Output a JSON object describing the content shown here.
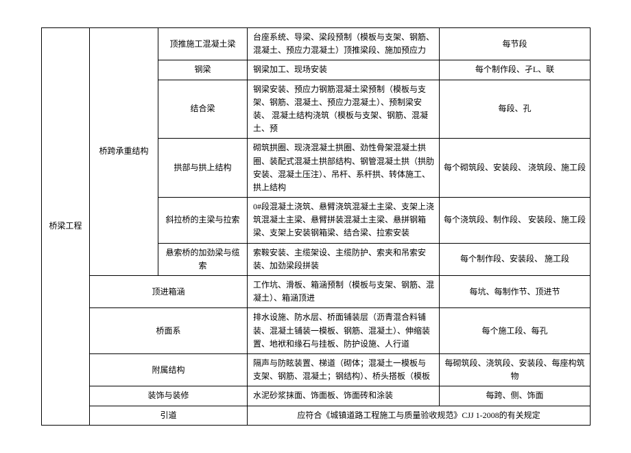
{
  "table": {
    "col0": "桥梁工程",
    "rows": [
      {
        "c1": "桥跨承重结构",
        "c2": "顶推施工混凝土梁",
        "c3": "台座系统、导梁、梁段预制（模板与支架、钢筋、混凝土、预应力混凝土）顶推梁段、施加预应力",
        "c4": "每节段"
      },
      {
        "c2": "钢梁",
        "c3": "钢梁加工、现场安装",
        "c4": "每个制作段、孑L、联"
      },
      {
        "c2": "结合梁",
        "c3": "钢梁安装、预应力钢筋混凝土梁预制（模板与支架、钢筋、混凝土、预应力混凝土）、预制梁安装、\n混凝土结构浇筑（模板与支架、钢筋、混凝土、预",
        "c4": "每段、孔"
      },
      {
        "c2": "拱部与拱上结构",
        "c3": "砌筑拱圈、现浇混凝土拱圈、劲性骨架混凝土拱圈、装配式混凝土拱部结构、钢管混凝土拱（拱肋安装、混凝土压注）、吊杆、系杆拱、转体施工、拱上结构",
        "c4": "每个砌筑段、安装段、 浇筑段、施工段"
      },
      {
        "c2": "斜拉桥的主梁与拉索",
        "c3": "0#段混凝土浇筑、悬臂浇筑混凝土主梁、支架上浇筑混凝土主梁、悬臂拼装混凝土主梁、悬拼钢箱梁、支架上安装钢箱梁、结合梁、拉索安装",
        "c4": "每个浇筑段、制作段、 安装段、施工段"
      },
      {
        "c2": "悬索桥的加劲梁与缆索",
        "c3": "索鞍安装、主缆架设、主缆防护、索夹和吊索安装、加劲梁段拼装",
        "c4": "每个制作段、安装段、 施工段"
      },
      {
        "c1": "顶进箱涵",
        "c3": "工作坑、滑板、箱涵预制（模板与支架、钢筋、混凝土）、箱涵顶进",
        "c4": "每坑、每制作节、顶进节"
      },
      {
        "c1": "桥面系",
        "c3": "排水设施、防水层、桥面铺装层（沥青混合料铺装、混凝土铺装一模板、钢筋、混凝土）、伸缩装置、地袱和缘石与挂板、防护设施、人行道",
        "c4": "每个施工段、每孔"
      },
      {
        "c1": "附属结构",
        "c3": "隔声与防眩装置、梯道（砌体；混凝土一模板与\n支架、钢筋、混凝土；钢结构）、桥头搭板（模板",
        "c4": "每砌筑段、浇筑段、安装段、每座构筑物"
      },
      {
        "c1": "装饰与装修",
        "c3": "水泥砂浆抹面、饰面板、饰面砖和涂装",
        "c4": "每跨、侧、饰面"
      },
      {
        "c1": "引道",
        "c3_full": "应符合《城镇道路工程施工与质量验收规范》CJJ 1-2008的有关规定"
      }
    ]
  }
}
